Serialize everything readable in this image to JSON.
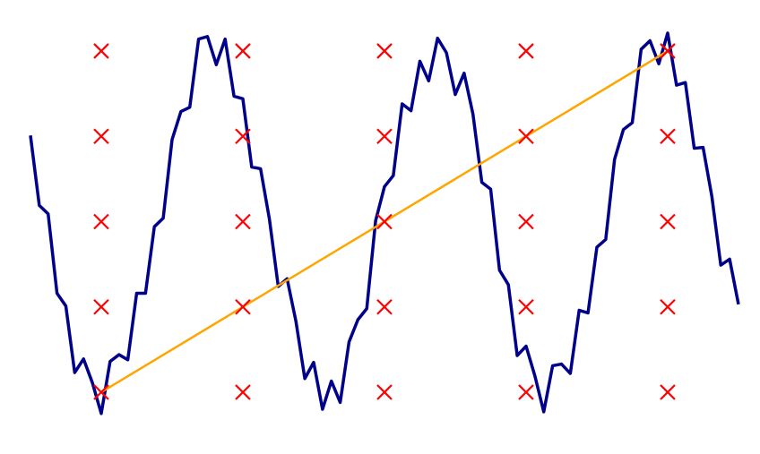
{
  "chart_data": {
    "type": "line",
    "xlim": [
      -0.715,
      4.652
    ],
    "ylim": [
      -0.672,
      4.598
    ],
    "series": [
      {
        "type": "line",
        "color": "#00008b",
        "x": [
          -0.5,
          -0.4375,
          -0.375,
          -0.3125,
          -0.25,
          -0.1875,
          -0.125,
          -0.0625,
          0,
          0.0625,
          0.125,
          0.1875,
          0.25,
          0.3125,
          0.375,
          0.4375,
          0.5,
          0.5625,
          0.625,
          0.6875,
          0.75,
          0.8125,
          0.875,
          0.9375,
          1,
          1.0625,
          1.125,
          1.1875,
          1.25,
          1.3125,
          1.375,
          1.4375,
          1.5,
          1.5625,
          1.625,
          1.6875,
          1.75,
          1.8125,
          1.875,
          1.9375,
          2,
          2.0625,
          2.125,
          2.1875,
          2.25,
          2.3125,
          2.375,
          2.4375,
          2.5,
          2.5625,
          2.625,
          2.6875,
          2.75,
          2.8125,
          2.875,
          2.9375,
          3,
          3.0625,
          3.125,
          3.1875,
          3.25,
          3.3125,
          3.375,
          3.4375,
          3.5,
          3.5625,
          3.625,
          3.6875,
          3.75,
          3.8125,
          3.875,
          3.9375,
          4,
          4.0625,
          4.125,
          4.1875,
          4.25,
          4.3125,
          4.375,
          4.4375,
          4.5
        ],
        "values": [
          3.01,
          2.19,
          2.09,
          1.16,
          1.01,
          0.23,
          0.39,
          0.11,
          -0.25,
          0.36,
          0.44,
          0.38,
          1.16,
          1.16,
          1.94,
          2.04,
          2.96,
          3.29,
          3.34,
          4.14,
          4.17,
          3.84,
          4.14,
          3.47,
          3.44,
          2.64,
          2.62,
          2.03,
          1.24,
          1.33,
          0.83,
          0.16,
          0.35,
          -0.2,
          0.13,
          -0.12,
          0.59,
          0.85,
          0.98,
          2.01,
          2.41,
          2.54,
          3.38,
          3.3,
          3.88,
          3.65,
          4.15,
          3.98,
          3.49,
          3.74,
          3.26,
          2.46,
          2.38,
          1.43,
          1.26,
          0.43,
          0.54,
          0.19,
          -0.23,
          0.31,
          0.33,
          0.22,
          0.96,
          0.93,
          1.7,
          1.79,
          2.73,
          3.08,
          3.16,
          4.02,
          4.12,
          3.85,
          4.21,
          3.6,
          3.63,
          2.86,
          2.87,
          2.29,
          1.49,
          1.56,
          1.03
        ]
      },
      {
        "type": "scatter",
        "color": "#ff0000",
        "x": [
          0,
          1,
          2,
          3,
          4,
          0,
          1,
          2,
          3,
          4,
          0,
          1,
          2,
          3,
          4,
          0,
          1,
          2,
          3,
          4,
          0,
          1,
          2,
          3,
          4
        ],
        "values": [
          4,
          4,
          4,
          4,
          4,
          3,
          3,
          3,
          3,
          3,
          2,
          2,
          2,
          2,
          2,
          1,
          1,
          1,
          1,
          1,
          0,
          0,
          0,
          0,
          0
        ]
      },
      {
        "type": "line",
        "color": "#ffa500",
        "x": [
          0,
          4
        ],
        "values": [
          0,
          4
        ]
      }
    ]
  }
}
